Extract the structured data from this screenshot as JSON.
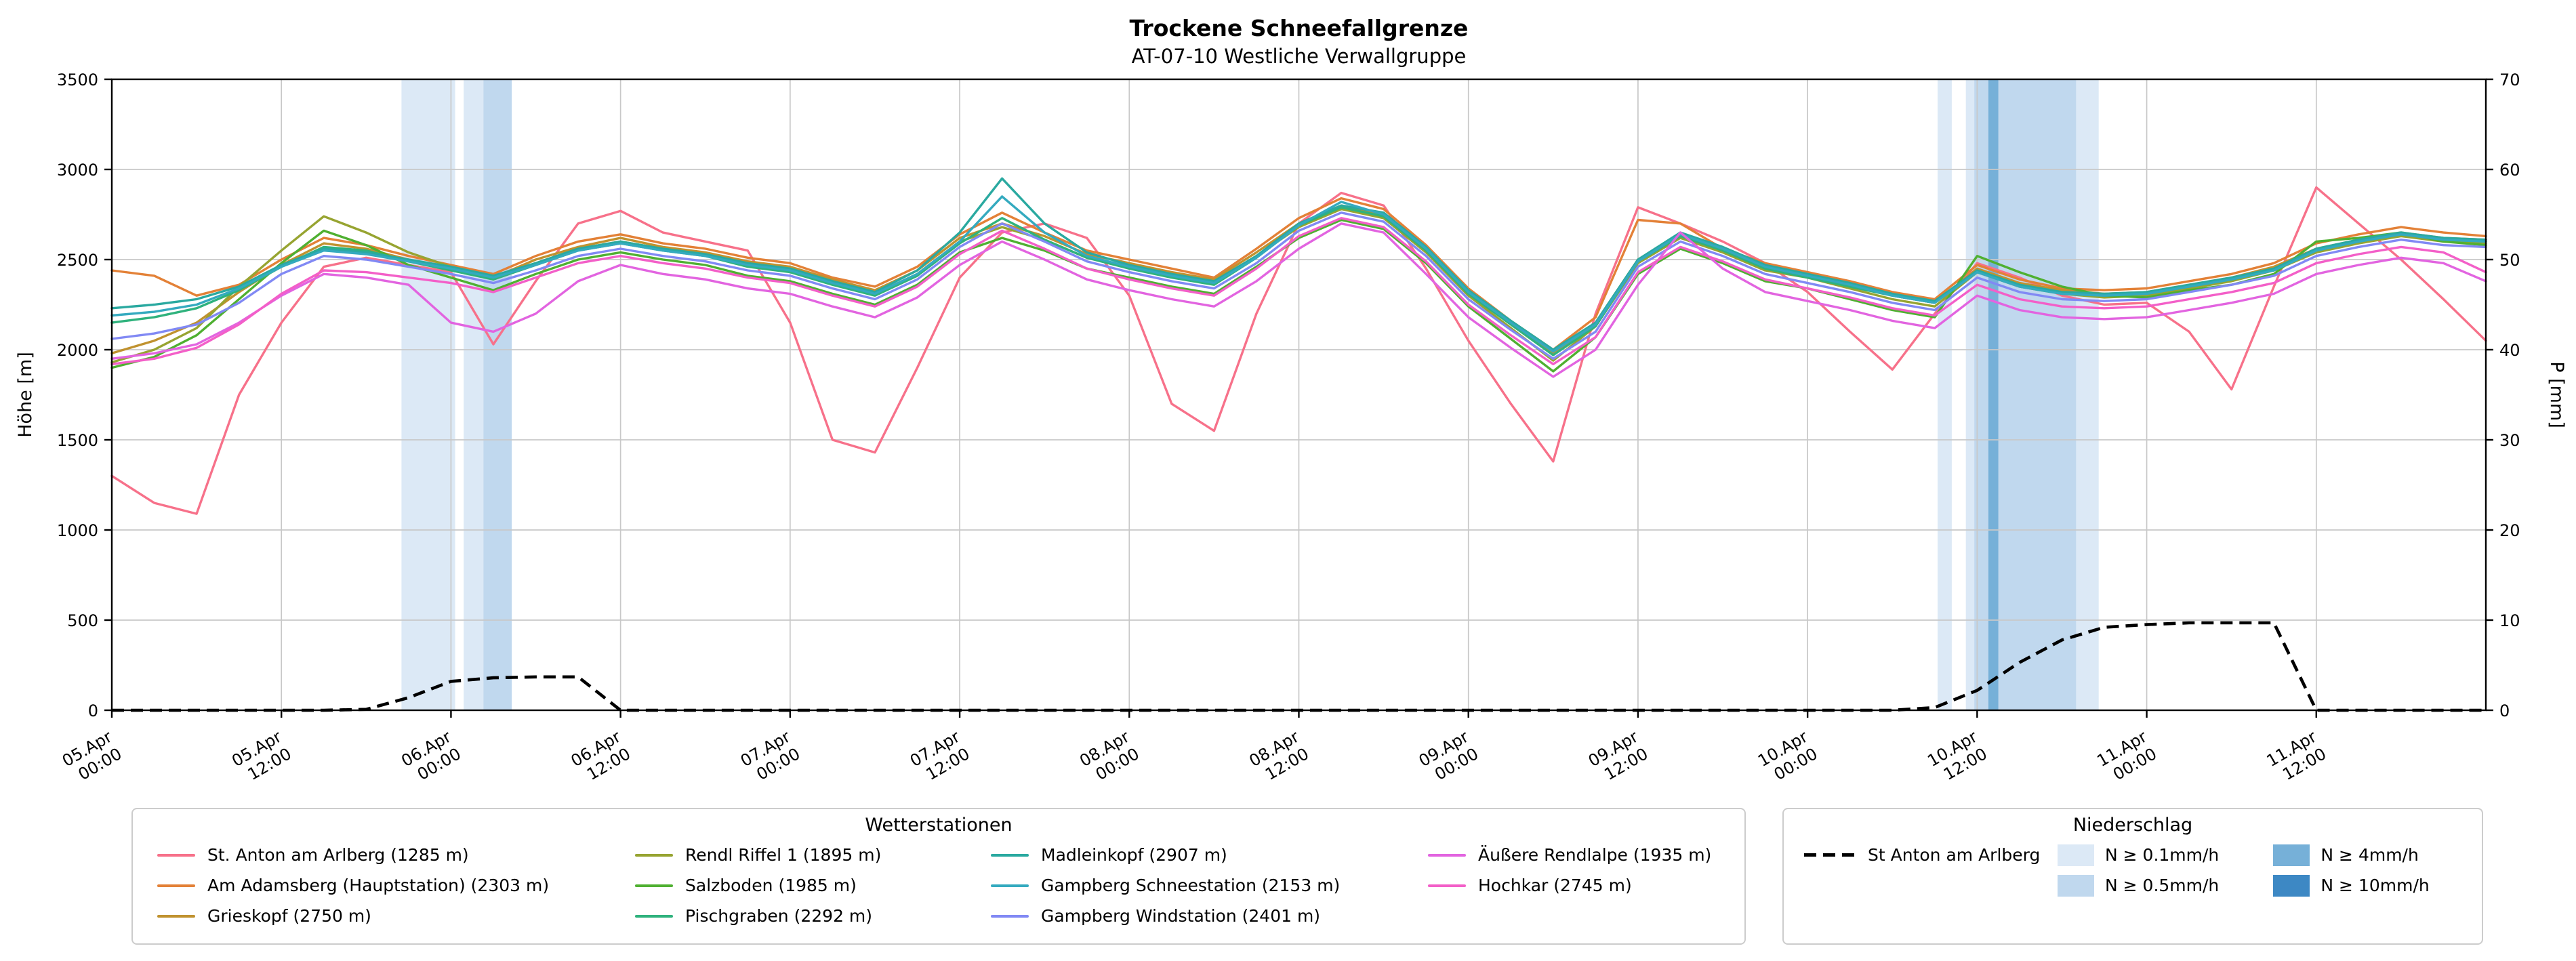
{
  "chart_data": {
    "type": "line",
    "title": "Trockene Schneefallgrenze",
    "subtitle": "AT-07-10 Westliche Verwallgruppe",
    "ylabel_left": "Höhe [m]",
    "ylabel_right": "P [mm]",
    "y_left": {
      "range": [
        0,
        3500
      ],
      "ticks": [
        0,
        500,
        1000,
        1500,
        2000,
        2500,
        3000,
        3500
      ]
    },
    "y_right": {
      "range": [
        0,
        70
      ],
      "ticks": [
        0,
        10,
        20,
        30,
        40,
        50,
        60,
        70
      ]
    },
    "x_range_hours": [
      0,
      168
    ],
    "x_origin": "05.Apr 00:00",
    "time_step_hours": 3,
    "grid": true,
    "x_ticks": [
      {
        "t": 0,
        "date": "05.Apr",
        "time": "00:00"
      },
      {
        "t": 12,
        "date": "05.Apr",
        "time": "12:00"
      },
      {
        "t": 24,
        "date": "06.Apr",
        "time": "00:00"
      },
      {
        "t": 36,
        "date": "06.Apr",
        "time": "12:00"
      },
      {
        "t": 48,
        "date": "07.Apr",
        "time": "00:00"
      },
      {
        "t": 60,
        "date": "07.Apr",
        "time": "12:00"
      },
      {
        "t": 72,
        "date": "08.Apr",
        "time": "00:00"
      },
      {
        "t": 84,
        "date": "08.Apr",
        "time": "12:00"
      },
      {
        "t": 96,
        "date": "09.Apr",
        "time": "00:00"
      },
      {
        "t": 108,
        "date": "09.Apr",
        "time": "12:00"
      },
      {
        "t": 120,
        "date": "10.Apr",
        "time": "00:00"
      },
      {
        "t": 132,
        "date": "10.Apr",
        "time": "12:00"
      },
      {
        "t": 144,
        "date": "11.Apr",
        "time": "00:00"
      },
      {
        "t": 156,
        "date": "11.Apr",
        "time": "12:00"
      }
    ],
    "legends": {
      "stations_title": "Wetterstationen",
      "precip_title": "Niederschlag"
    },
    "stations": [
      {
        "name": "St. Anton am Arlberg (1285 m)",
        "color": "#f7718a",
        "values": [
          1300,
          1150,
          1090,
          1750,
          2150,
          2460,
          2510,
          2470,
          2430,
          2030,
          2380,
          2700,
          2770,
          2650,
          2600,
          2550,
          2150,
          1500,
          1430,
          1900,
          2400,
          2650,
          2700,
          2620,
          2300,
          1700,
          1550,
          2200,
          2700,
          2870,
          2800,
          2450,
          2050,
          1700,
          1380,
          2200,
          2790,
          2700,
          2600,
          2480,
          2320,
          2100,
          1890,
          2200,
          2480,
          2400,
          2300,
          2250,
          2260,
          2100,
          1780,
          2350,
          2900,
          2700,
          2500,
          2280,
          2050
        ]
      },
      {
        "name": "Am Adamsberg (Hauptstation) (2303 m)",
        "color": "#e38137",
        "values": [
          2440,
          2410,
          2300,
          2360,
          2500,
          2620,
          2580,
          2520,
          2470,
          2420,
          2520,
          2600,
          2640,
          2590,
          2560,
          2510,
          2480,
          2400,
          2350,
          2460,
          2640,
          2760,
          2650,
          2550,
          2500,
          2450,
          2400,
          2560,
          2730,
          2840,
          2780,
          2580,
          2340,
          2160,
          2000,
          2180,
          2720,
          2700,
          2560,
          2480,
          2430,
          2380,
          2320,
          2280,
          2470,
          2390,
          2340,
          2330,
          2340,
          2380,
          2420,
          2480,
          2590,
          2640,
          2680,
          2650,
          2630
        ]
      },
      {
        "name": "Grieskopf (2750 m)",
        "color": "#c0922f",
        "values": [
          1980,
          2050,
          2150,
          2320,
          2470,
          2590,
          2560,
          2500,
          2450,
          2400,
          2500,
          2570,
          2620,
          2570,
          2540,
          2490,
          2460,
          2390,
          2330,
          2440,
          2620,
          2700,
          2630,
          2530,
          2480,
          2430,
          2390,
          2540,
          2700,
          2800,
          2750,
          2560,
          2320,
          2140,
          1980,
          2150,
          2500,
          2640,
          2560,
          2460,
          2420,
          2360,
          2300,
          2260,
          2450,
          2370,
          2330,
          2310,
          2320,
          2360,
          2400,
          2460,
          2560,
          2610,
          2650,
          2620,
          2610
        ]
      },
      {
        "name": "Rendl Riffel 1 (1895 m)",
        "color": "#97a431",
        "values": [
          1930,
          2000,
          2120,
          2350,
          2550,
          2740,
          2650,
          2540,
          2460,
          2390,
          2480,
          2560,
          2600,
          2560,
          2530,
          2470,
          2440,
          2370,
          2310,
          2420,
          2600,
          2680,
          2610,
          2510,
          2460,
          2410,
          2370,
          2520,
          2680,
          2780,
          2730,
          2540,
          2300,
          2120,
          1940,
          2130,
          2480,
          2620,
          2540,
          2440,
          2400,
          2340,
          2280,
          2240,
          2430,
          2350,
          2310,
          2290,
          2300,
          2340,
          2380,
          2440,
          2540,
          2590,
          2630,
          2600,
          2590
        ]
      },
      {
        "name": "Salzboden (1985 m)",
        "color": "#4fb031",
        "values": [
          1900,
          1960,
          2080,
          2280,
          2480,
          2660,
          2580,
          2470,
          2400,
          2330,
          2420,
          2500,
          2540,
          2500,
          2470,
          2410,
          2380,
          2310,
          2250,
          2360,
          2540,
          2620,
          2550,
          2450,
          2400,
          2350,
          2310,
          2460,
          2620,
          2720,
          2670,
          2480,
          2240,
          2060,
          1880,
          2070,
          2420,
          2560,
          2480,
          2380,
          2340,
          2280,
          2220,
          2180,
          2520,
          2430,
          2350,
          2300,
          2290,
          2330,
          2360,
          2420,
          2600,
          2620,
          2650,
          2600,
          2580
        ]
      },
      {
        "name": "Pischgraben (2292 m)",
        "color": "#2fb27d",
        "values": [
          2150,
          2180,
          2230,
          2330,
          2460,
          2570,
          2550,
          2490,
          2440,
          2390,
          2470,
          2550,
          2590,
          2550,
          2520,
          2460,
          2430,
          2360,
          2300,
          2410,
          2590,
          2730,
          2610,
          2510,
          2450,
          2400,
          2360,
          2510,
          2690,
          2790,
          2740,
          2550,
          2310,
          2140,
          1970,
          2130,
          2490,
          2630,
          2550,
          2450,
          2400,
          2350,
          2300,
          2260,
          2430,
          2350,
          2310,
          2300,
          2310,
          2350,
          2390,
          2440,
          2550,
          2600,
          2640,
          2610,
          2600
        ]
      },
      {
        "name": "Madleinkopf (2907 m)",
        "color": "#2aa9a0",
        "values": [
          2230,
          2250,
          2280,
          2350,
          2470,
          2560,
          2540,
          2500,
          2460,
          2410,
          2480,
          2560,
          2600,
          2560,
          2530,
          2480,
          2450,
          2380,
          2320,
          2440,
          2650,
          2950,
          2700,
          2540,
          2470,
          2420,
          2380,
          2520,
          2700,
          2800,
          2760,
          2570,
          2330,
          2160,
          2000,
          2150,
          2500,
          2650,
          2570,
          2470,
          2420,
          2370,
          2310,
          2270,
          2440,
          2360,
          2320,
          2310,
          2320,
          2360,
          2400,
          2450,
          2560,
          2610,
          2650,
          2620,
          2610
        ]
      },
      {
        "name": "Gampberg Schneestation (2153 m)",
        "color": "#34aabf",
        "values": [
          2190,
          2210,
          2250,
          2340,
          2460,
          2550,
          2530,
          2490,
          2450,
          2400,
          2470,
          2550,
          2590,
          2550,
          2520,
          2470,
          2440,
          2370,
          2310,
          2420,
          2600,
          2850,
          2650,
          2520,
          2460,
          2410,
          2370,
          2510,
          2690,
          2820,
          2750,
          2560,
          2320,
          2150,
          1990,
          2140,
          2490,
          2640,
          2560,
          2460,
          2410,
          2360,
          2300,
          2260,
          2430,
          2350,
          2310,
          2300,
          2310,
          2350,
          2390,
          2440,
          2550,
          2600,
          2640,
          2610,
          2600
        ]
      },
      {
        "name": "Gampberg Windstation (2401 m)",
        "color": "#8189f4",
        "values": [
          2060,
          2090,
          2140,
          2260,
          2420,
          2520,
          2500,
          2460,
          2420,
          2370,
          2440,
          2520,
          2560,
          2520,
          2490,
          2440,
          2410,
          2340,
          2280,
          2390,
          2570,
          2700,
          2600,
          2490,
          2430,
          2380,
          2340,
          2480,
          2660,
          2760,
          2710,
          2520,
          2280,
          2110,
          1950,
          2100,
          2460,
          2600,
          2520,
          2420,
          2370,
          2320,
          2260,
          2220,
          2400,
          2320,
          2280,
          2270,
          2280,
          2320,
          2360,
          2410,
          2520,
          2570,
          2610,
          2580,
          2570
        ]
      },
      {
        "name": "Äußere Rendlalpe (1935 m)",
        "color": "#e264e0",
        "values": [
          1950,
          1980,
          2030,
          2150,
          2300,
          2420,
          2400,
          2360,
          2150,
          2100,
          2200,
          2380,
          2470,
          2420,
          2390,
          2340,
          2310,
          2240,
          2180,
          2290,
          2470,
          2600,
          2500,
          2390,
          2330,
          2280,
          2240,
          2380,
          2560,
          2700,
          2650,
          2420,
          2180,
          2010,
          1850,
          2000,
          2360,
          2650,
          2450,
          2320,
          2270,
          2220,
          2160,
          2120,
          2300,
          2220,
          2180,
          2170,
          2180,
          2220,
          2260,
          2310,
          2420,
          2470,
          2510,
          2480,
          2380
        ]
      },
      {
        "name": "Hochkar (2745 m)",
        "color": "#f35fc8",
        "values": [
          1920,
          1950,
          2010,
          2140,
          2310,
          2440,
          2430,
          2400,
          2370,
          2320,
          2400,
          2480,
          2520,
          2480,
          2450,
          2400,
          2370,
          2300,
          2240,
          2350,
          2530,
          2660,
          2560,
          2450,
          2390,
          2340,
          2300,
          2450,
          2630,
          2730,
          2680,
          2490,
          2250,
          2080,
          1920,
          2070,
          2430,
          2570,
          2490,
          2390,
          2340,
          2290,
          2230,
          2190,
          2360,
          2280,
          2240,
          2230,
          2240,
          2280,
          2320,
          2370,
          2480,
          2530,
          2570,
          2540,
          2430
        ]
      }
    ],
    "precipitation_line": {
      "name": "St Anton am Arlberg",
      "color": "#000000",
      "dashed": true,
      "values": [
        0,
        0,
        0,
        0,
        0,
        0,
        0.1,
        1.4,
        3.2,
        3.6,
        3.7,
        3.7,
        0,
        0,
        0,
        0,
        0,
        0,
        0,
        0,
        0,
        0,
        0,
        0,
        0,
        0,
        0,
        0,
        0,
        0,
        0,
        0,
        0,
        0,
        0,
        0,
        0,
        0,
        0,
        0,
        0,
        0,
        0,
        0.3,
        2.2,
        5.3,
        7.8,
        9.2,
        9.5,
        9.7,
        9.7,
        9.7,
        0,
        0,
        0,
        0,
        0
      ]
    },
    "precip_levels": [
      {
        "label": "N ≥ 0.1mm/h",
        "color": "#dce9f6"
      },
      {
        "label": "N ≥ 0.5mm/h",
        "color": "#c0d8ee"
      },
      {
        "label": "N ≥ 4mm/h",
        "color": "#76b0d8"
      },
      {
        "label": "N ≥ 10mm/h",
        "color": "#3d88c4"
      }
    ],
    "precip_spans": [
      {
        "from_h": 20.5,
        "to_h": 24.3,
        "level": "N ≥ 0.1mm/h"
      },
      {
        "from_h": 24.9,
        "to_h": 28.3,
        "level": "N ≥ 0.1mm/h"
      },
      {
        "from_h": 26.3,
        "to_h": 28.3,
        "level": "N ≥ 0.5mm/h"
      },
      {
        "from_h": 129.2,
        "to_h": 130.2,
        "level": "N ≥ 0.1mm/h"
      },
      {
        "from_h": 131.2,
        "to_h": 140.6,
        "level": "N ≥ 0.1mm/h"
      },
      {
        "from_h": 131.8,
        "to_h": 139.0,
        "level": "N ≥ 0.5mm/h"
      },
      {
        "from_h": 132.8,
        "to_h": 133.5,
        "level": "N ≥ 4mm/h"
      }
    ]
  }
}
